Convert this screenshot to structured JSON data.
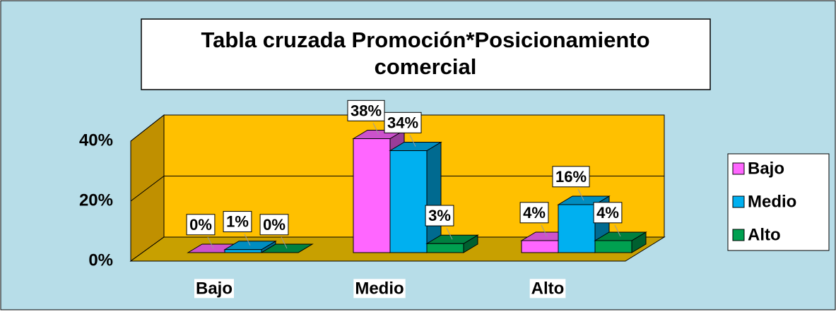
{
  "chart_data": {
    "type": "bar3d",
    "title": "Tabla cruzada Promoción*Posicionamiento comercial",
    "categories": [
      "Bajo",
      "Medio",
      "Alto"
    ],
    "series": [
      {
        "name": "Bajo",
        "color": "#ff66ff",
        "values": [
          0,
          38,
          4
        ],
        "value_labels": [
          "0%",
          "38%",
          "4%"
        ]
      },
      {
        "name": "Medio",
        "color": "#00b0f0",
        "values": [
          1,
          34,
          16
        ],
        "value_labels": [
          "1%",
          "34%",
          "16%"
        ]
      },
      {
        "name": "Alto",
        "color": "#00a050",
        "values": [
          0,
          3,
          4
        ],
        "value_labels": [
          "0%",
          "3%",
          "4%"
        ]
      }
    ],
    "ylim": [
      0,
      40
    ],
    "yticks": [
      {
        "value": 0,
        "label": "0%"
      },
      {
        "value": 20,
        "label": "20%"
      },
      {
        "value": 40,
        "label": "40%"
      }
    ],
    "grid": true,
    "legend": "right"
  }
}
